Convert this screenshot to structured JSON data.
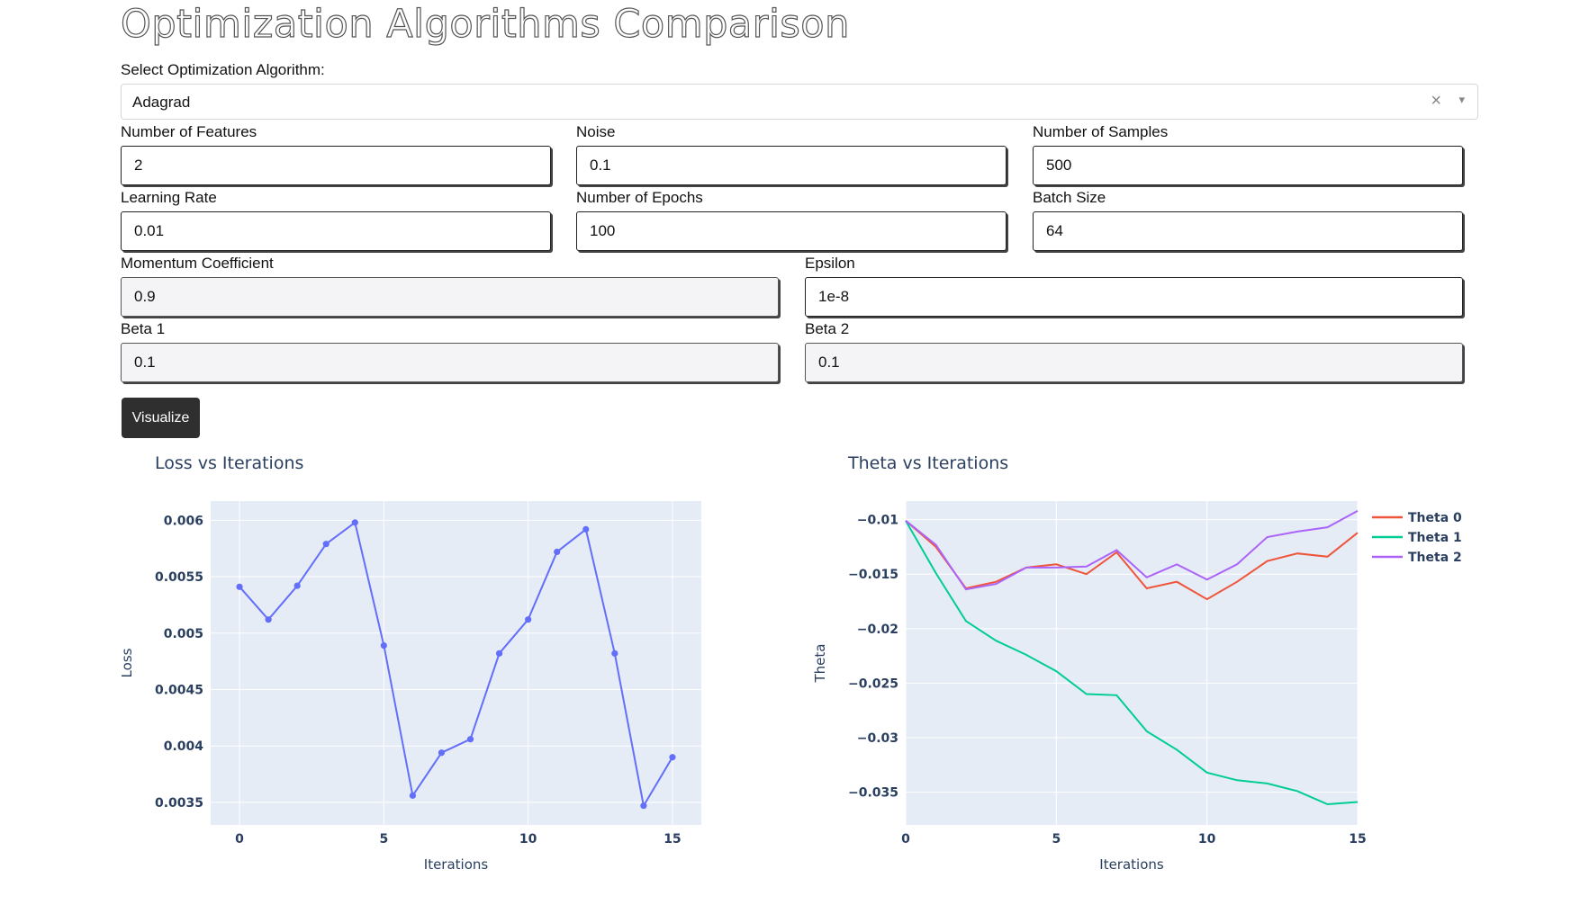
{
  "page": {
    "title": "Optimization Algorithms Comparison"
  },
  "algorithm": {
    "label": "Select Optimization Algorithm:",
    "selected": "Adagrad",
    "clear": "×",
    "caret": "▾"
  },
  "inputs": {
    "num_features": {
      "label": "Number of Features",
      "value": "2"
    },
    "noise": {
      "label": "Noise",
      "value": "0.1"
    },
    "num_samples": {
      "label": "Number of Samples",
      "value": "500"
    },
    "learning_rate": {
      "label": "Learning Rate",
      "value": "0.01"
    },
    "num_epochs": {
      "label": "Number of Epochs",
      "value": "100"
    },
    "batch_size": {
      "label": "Batch Size",
      "value": "64"
    },
    "momentum": {
      "label": "Momentum Coefficient",
      "value": "0.9"
    },
    "epsilon": {
      "label": "Epsilon",
      "value": "1e-8"
    },
    "beta1": {
      "label": "Beta 1",
      "value": "0.1"
    },
    "beta2": {
      "label": "Beta 2",
      "value": "0.1"
    }
  },
  "visualize_button": {
    "label": "Visualize"
  },
  "chart_data": [
    {
      "type": "line",
      "title": "Loss vs Iterations",
      "xlabel": "Iterations",
      "ylabel": "Loss",
      "xlim": [
        -1,
        16
      ],
      "ylim": [
        0.0033,
        0.00617
      ],
      "xticks": [
        0,
        5,
        10,
        15
      ],
      "xtick_labels": [
        "0",
        "5",
        "10",
        "15"
      ],
      "yticks": [
        0.0035,
        0.004,
        0.0045,
        0.005,
        0.0055,
        0.006
      ],
      "ytick_labels": [
        "0.0035",
        "0.004",
        "0.0045",
        "0.005",
        "0.0055",
        "0.006"
      ],
      "grid": true,
      "markers": true,
      "x": [
        0,
        1,
        2,
        3,
        4,
        5,
        6,
        7,
        8,
        9,
        10,
        11,
        12,
        13,
        14,
        15
      ],
      "series": [
        {
          "values": [
            0.00541,
            0.00512,
            0.00542,
            0.00579,
            0.00598,
            0.00489,
            0.00356,
            0.00394,
            0.00406,
            0.00482,
            0.00512,
            0.00572,
            0.00592,
            0.00482,
            0.00347,
            0.0039
          ],
          "color": "#636efa"
        }
      ],
      "colors": {
        "plot_bg": "#e5ecf6",
        "grid": "#ffffff",
        "title": "#2a3f5f"
      }
    },
    {
      "type": "line",
      "title": "Theta vs Iterations",
      "xlabel": "Iterations",
      "ylabel": "Theta",
      "xlim": [
        0,
        15
      ],
      "ylim": [
        -0.038,
        -0.0083
      ],
      "xticks": [
        0,
        5,
        10,
        15
      ],
      "xtick_labels": [
        "0",
        "5",
        "10",
        "15"
      ],
      "yticks": [
        -0.035,
        -0.03,
        -0.025,
        -0.02,
        -0.015,
        -0.01
      ],
      "ytick_labels": [
        "−0.035",
        "−0.03",
        "−0.025",
        "−0.02",
        "−0.015",
        "−0.01"
      ],
      "grid": true,
      "legend_position": "right",
      "x": [
        0,
        1,
        2,
        3,
        4,
        5,
        6,
        7,
        8,
        9,
        10,
        11,
        12,
        13,
        14,
        15
      ],
      "series": [
        {
          "name": "Theta 0",
          "color": "#ef553b",
          "values": [
            -0.0101,
            -0.0125,
            -0.0163,
            -0.0157,
            -0.0144,
            -0.0141,
            -0.015,
            -0.013,
            -0.0163,
            -0.0157,
            -0.0173,
            -0.0157,
            -0.0138,
            -0.0131,
            -0.0134,
            -0.0112
          ]
        },
        {
          "name": "Theta 1",
          "color": "#00cc96",
          "values": [
            -0.0101,
            -0.0149,
            -0.0193,
            -0.0211,
            -0.0224,
            -0.0239,
            -0.026,
            -0.0261,
            -0.0294,
            -0.0311,
            -0.0332,
            -0.0339,
            -0.0342,
            -0.0349,
            -0.0361,
            -0.0359
          ]
        },
        {
          "name": "Theta 2",
          "color": "#ab63fa",
          "values": [
            -0.0101,
            -0.0123,
            -0.0164,
            -0.0159,
            -0.0144,
            -0.0144,
            -0.0143,
            -0.0128,
            -0.0153,
            -0.0141,
            -0.0155,
            -0.0141,
            -0.0116,
            -0.0111,
            -0.0107,
            -0.0092
          ]
        }
      ],
      "colors": {
        "plot_bg": "#e5ecf6",
        "grid": "#ffffff",
        "title": "#2a3f5f"
      }
    }
  ]
}
